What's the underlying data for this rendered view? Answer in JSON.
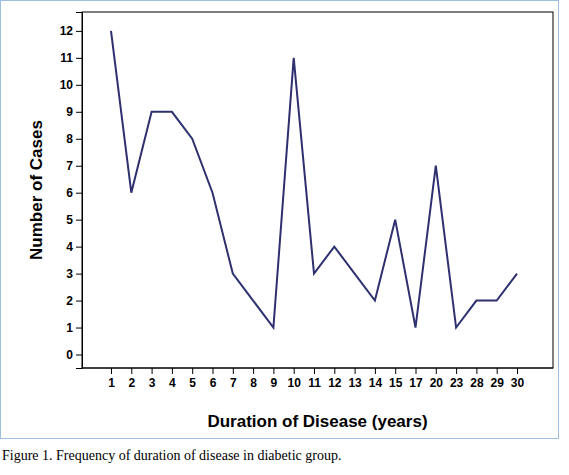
{
  "chart_data": {
    "type": "line",
    "title": "Figure 1. Frequency of duration of disease in diabetic group.",
    "x_label": "Duration of Disease (years)",
    "y_label": "Number of Cases",
    "categories": [
      "1",
      "2",
      "3",
      "4",
      "5",
      "6",
      "7",
      "8",
      "9",
      "10",
      "11",
      "12",
      "13",
      "14",
      "15",
      "17",
      "20",
      "23",
      "28",
      "29",
      "30"
    ],
    "values": [
      12,
      6,
      9,
      9,
      8,
      6,
      3,
      2,
      1,
      11,
      3,
      4,
      3,
      2,
      5,
      1,
      7,
      1,
      2,
      2,
      3
    ],
    "color": "#2e3070",
    "line_style": "solid",
    "ylim": [
      -0.5,
      12.7
    ],
    "yticks": [
      0,
      1,
      2,
      3,
      4,
      5,
      6,
      7,
      8,
      9,
      10,
      11,
      12
    ],
    "grid": false
  }
}
